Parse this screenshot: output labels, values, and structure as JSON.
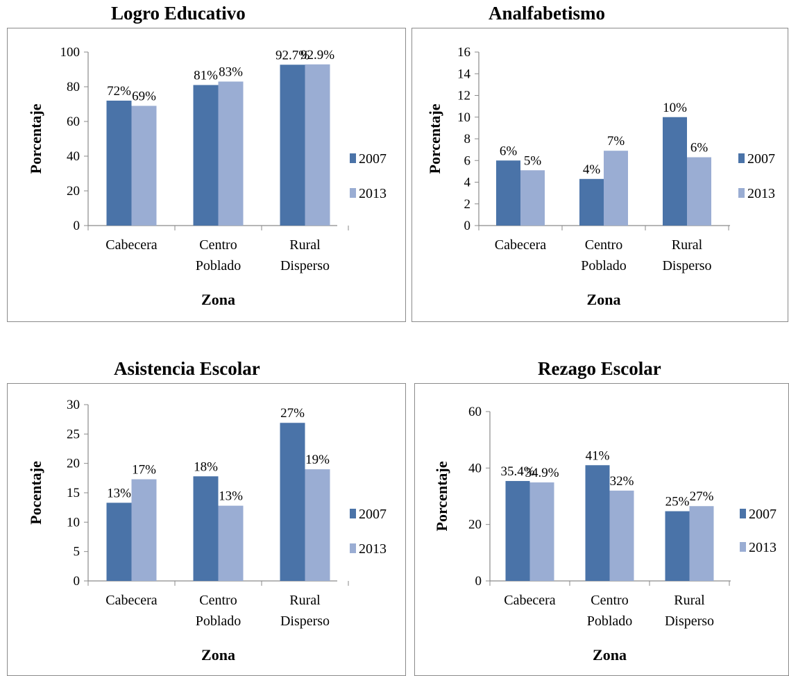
{
  "colors": {
    "series_2007": "#4a73a8",
    "series_2013": "#9aadd3",
    "axis": "#8a8a8a"
  },
  "chart_data": [
    {
      "type": "bar",
      "title": "Logro Educativo",
      "xlabel": "Zona",
      "ylabel": "Porcentaje",
      "categories": [
        "Cabecera",
        "Centro Poblado",
        "Rural Disperso"
      ],
      "category_lines": [
        [
          "Cabecera"
        ],
        [
          "Centro",
          "Poblado"
        ],
        [
          "Rural",
          "Disperso"
        ]
      ],
      "ylim": [
        0,
        100
      ],
      "yticks": [
        0,
        20,
        40,
        60,
        80,
        100
      ],
      "series": [
        {
          "name": "2007",
          "values": [
            72,
            81,
            92.7
          ],
          "labels": [
            "72%",
            "81%",
            "92.7%"
          ]
        },
        {
          "name": "2013",
          "values": [
            69,
            83,
            92.9
          ],
          "labels": [
            "69%",
            "83%",
            "92.9%"
          ]
        }
      ],
      "legend": "right",
      "grid": false
    },
    {
      "type": "bar",
      "title": "Analfabetismo",
      "xlabel": "Zona",
      "ylabel": "Porcentaje",
      "categories": [
        "Cabecera",
        "Centro Poblado",
        "Rural Disperso"
      ],
      "category_lines": [
        [
          "Cabecera"
        ],
        [
          "Centro",
          "Poblado"
        ],
        [
          "Rural",
          "Disperso"
        ]
      ],
      "ylim": [
        0,
        16
      ],
      "yticks": [
        0,
        2,
        4,
        6,
        8,
        10,
        12,
        14,
        16
      ],
      "series": [
        {
          "name": "2007",
          "values": [
            6,
            4.3,
            10
          ],
          "labels": [
            "6%",
            "4%",
            "10%"
          ]
        },
        {
          "name": "2013",
          "values": [
            5.1,
            6.9,
            6.3
          ],
          "labels": [
            "5%",
            "7%",
            "6%"
          ]
        }
      ],
      "legend": "right",
      "grid": false
    },
    {
      "type": "bar",
      "title": "Asistencia Escolar",
      "xlabel": "Zona",
      "ylabel": "Pocentaje",
      "categories": [
        "Cabecera",
        "Centro Poblado",
        "Rural Disperso"
      ],
      "category_lines": [
        [
          "Cabecera"
        ],
        [
          "Centro",
          "Poblado"
        ],
        [
          "Rural",
          "Disperso"
        ]
      ],
      "ylim": [
        0,
        30
      ],
      "yticks": [
        0,
        5,
        10,
        15,
        20,
        25,
        30
      ],
      "series": [
        {
          "name": "2007",
          "values": [
            13.3,
            17.8,
            26.9
          ],
          "labels": [
            "13%",
            "18%",
            "27%"
          ]
        },
        {
          "name": "2013",
          "values": [
            17.3,
            12.8,
            19
          ],
          "labels": [
            "17%",
            "13%",
            "19%"
          ]
        }
      ],
      "legend": "right",
      "grid": false
    },
    {
      "type": "bar",
      "title": "Rezago Escolar",
      "xlabel": "Zona",
      "ylabel": "Porcentaje",
      "categories": [
        "Cabecera",
        "Centro Poblado",
        "Rural Disperso"
      ],
      "category_lines": [
        [
          "Cabecera"
        ],
        [
          "Centro",
          "Poblado"
        ],
        [
          "Rural",
          "Disperso"
        ]
      ],
      "ylim": [
        0,
        60
      ],
      "yticks": [
        0,
        20,
        40,
        60
      ],
      "series": [
        {
          "name": "2007",
          "values": [
            35.4,
            41,
            24.7
          ],
          "labels": [
            "35.4%",
            "41%",
            "25%"
          ]
        },
        {
          "name": "2013",
          "values": [
            34.9,
            32,
            26.5
          ],
          "labels": [
            "34.9%",
            "32%",
            "27%"
          ]
        }
      ],
      "legend": "right",
      "grid": false
    }
  ]
}
